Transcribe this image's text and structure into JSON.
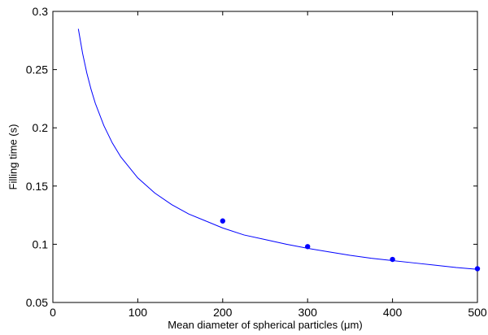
{
  "chart_data": {
    "type": "line",
    "title": "",
    "xlabel": "Mean diameter of spherical particles (μm)",
    "ylabel": "Filling time (s)",
    "xlim": [
      0,
      500
    ],
    "ylim": [
      0.05,
      0.3
    ],
    "xticks": [
      "0",
      "100",
      "200",
      "300",
      "400",
      "500"
    ],
    "yticks": [
      "0.05",
      "0.1",
      "0.15",
      "0.2",
      "0.25",
      "0.3"
    ],
    "grid": false,
    "series": [
      {
        "kind": "line",
        "color": "#0000ff",
        "x": [
          30,
          35,
          40,
          45,
          50,
          60,
          70,
          80,
          100,
          120,
          140,
          160,
          180,
          200,
          225,
          250,
          275,
          300,
          325,
          350,
          375,
          400,
          425,
          450,
          475,
          500
        ],
        "y": [
          0.285,
          0.264,
          0.247,
          0.233,
          0.221,
          0.202,
          0.187,
          0.175,
          0.157,
          0.144,
          0.134,
          0.126,
          0.12,
          0.114,
          0.108,
          0.104,
          0.1,
          0.0965,
          0.0935,
          0.0905,
          0.088,
          0.086,
          0.084,
          0.082,
          0.08,
          0.0785
        ]
      },
      {
        "kind": "scatter",
        "color": "#0000ff",
        "x": [
          200,
          300,
          400,
          500
        ],
        "y": [
          0.12,
          0.098,
          0.087,
          0.079
        ]
      }
    ]
  }
}
